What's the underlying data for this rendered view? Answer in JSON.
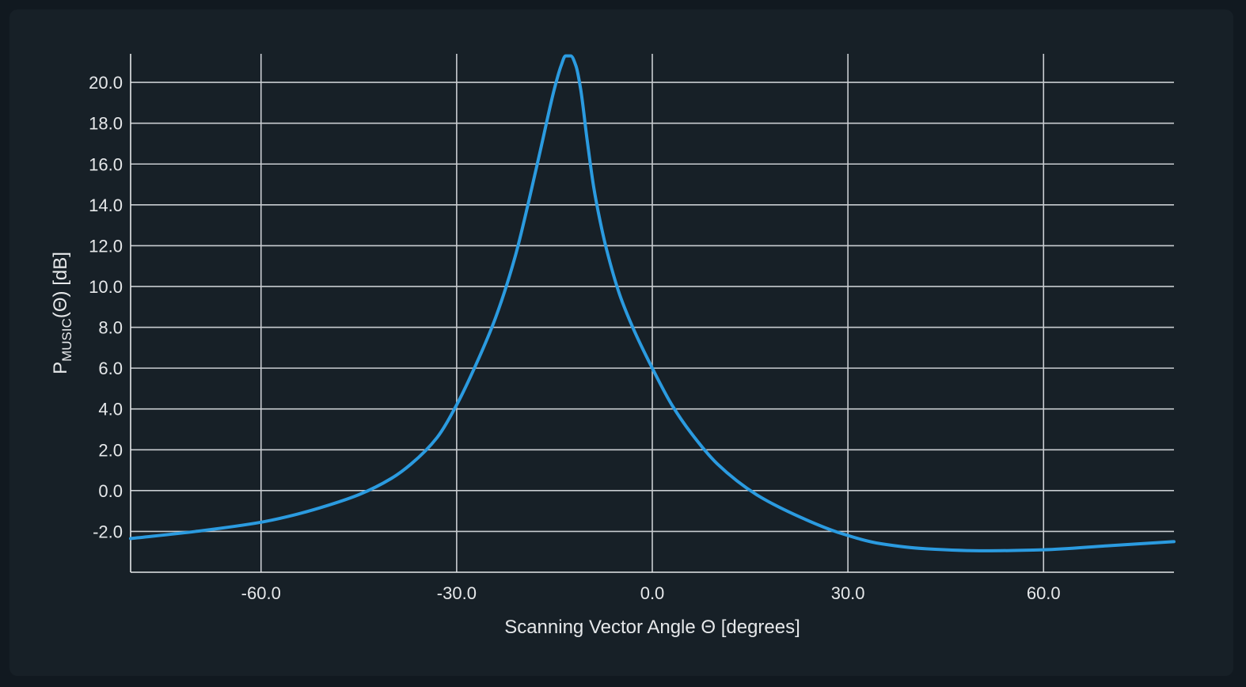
{
  "chart_data": {
    "type": "line",
    "title": "",
    "xlabel": "Scanning Vector Angle Θ [degrees]",
    "ylabel": {
      "prefix": "P",
      "subscript": "MUSIC",
      "suffix": "(Θ) [dB]"
    },
    "xlim": [
      -80,
      80
    ],
    "ylim": [
      -4,
      21.4
    ],
    "x_ticks": [
      -60.0,
      -30.0,
      0.0,
      30.0,
      60.0
    ],
    "x_tick_labels": [
      "-60.0",
      "-30.0",
      "0.0",
      "30.0",
      "60.0"
    ],
    "y_ticks": [
      -2.0,
      0.0,
      2.0,
      4.0,
      6.0,
      8.0,
      10.0,
      12.0,
      14.0,
      16.0,
      18.0,
      20.0
    ],
    "y_tick_labels": [
      "-2.0",
      "0.0",
      "2.0",
      "4.0",
      "6.0",
      "8.0",
      "10.0",
      "12.0",
      "14.0",
      "16.0",
      "18.0",
      "20.0"
    ],
    "grid": true,
    "line_color": "#2b9be0",
    "series": [
      {
        "x": [
          -80,
          -70,
          -60,
          -55,
          -50,
          -45,
          -40,
          -37,
          -33,
          -30,
          -27,
          -24,
          -21,
          -19,
          -17,
          -15,
          -14,
          -13.3,
          -12.5,
          -11.7,
          -11,
          -10,
          -9,
          -8,
          -7,
          -5,
          -3,
          0,
          3,
          6,
          10,
          16,
          22,
          29,
          35,
          42,
          51,
          60,
          70,
          80
        ],
        "y": [
          -2.35,
          -2.0,
          -1.55,
          -1.2,
          -0.75,
          -0.2,
          0.6,
          1.3,
          2.6,
          4.2,
          6.2,
          8.5,
          11.5,
          14.1,
          16.9,
          19.7,
          20.8,
          21.3,
          21.3,
          20.8,
          19.7,
          17.2,
          14.9,
          13.2,
          11.8,
          9.6,
          8.0,
          6.0,
          4.2,
          2.8,
          1.3,
          -0.2,
          -1.2,
          -2.1,
          -2.6,
          -2.85,
          -2.95,
          -2.9,
          -2.7,
          -2.5
        ]
      }
    ]
  }
}
